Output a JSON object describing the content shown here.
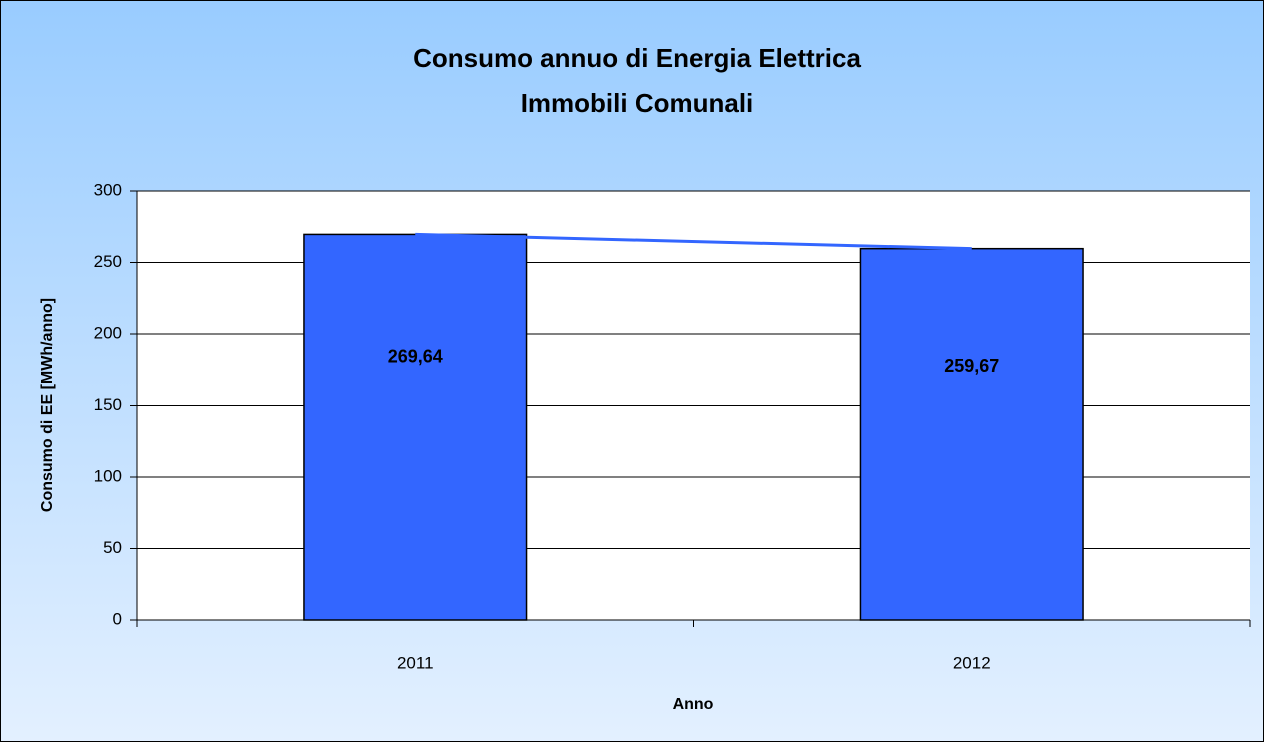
{
  "chart_data": {
    "type": "bar",
    "title": [
      "Consumo annuo di Energia Elettrica",
      "Immobili Comunali"
    ],
    "x_label": "Anno",
    "y_label": "Consumo di EE [MWh/anno]",
    "categories": [
      "2011",
      "2012"
    ],
    "values": [
      269.64,
      259.67
    ],
    "value_labels": [
      "269,64",
      "259,67"
    ],
    "color": "#3366ff",
    "line_color": "#3366ff",
    "ylim": [
      0,
      300
    ],
    "yticks": [
      0,
      50,
      100,
      150,
      200,
      250,
      300
    ],
    "grid": true
  }
}
